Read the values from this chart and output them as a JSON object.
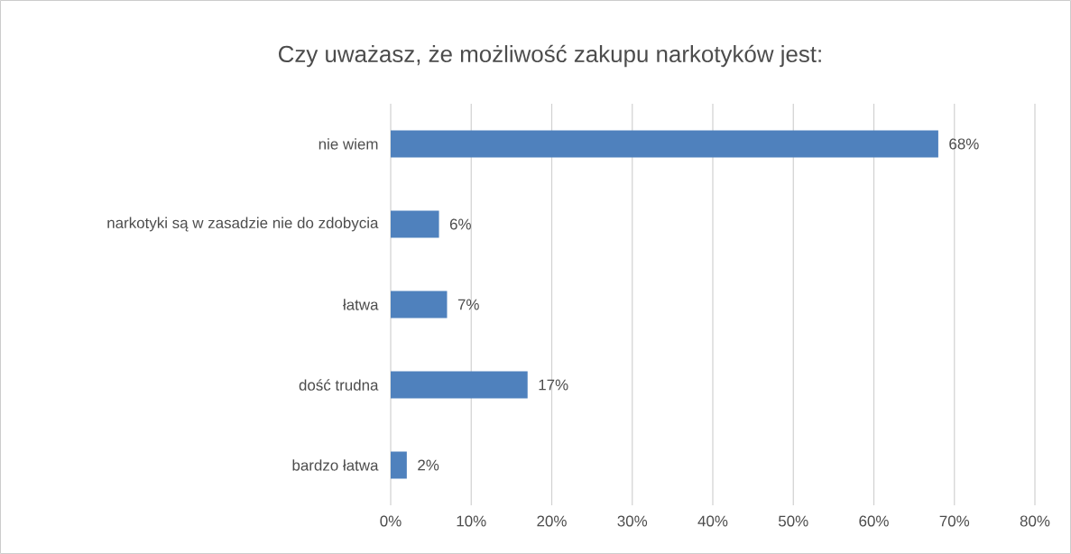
{
  "chart_data": {
    "type": "bar",
    "orientation": "horizontal",
    "title": "Czy uważasz, że możliwość zakupu narkotyków jest:",
    "categories": [
      "nie wiem",
      "narkotyki są w zasadzie nie do zdobycia",
      "łatwa",
      "dość trudna",
      "bardzo łatwa"
    ],
    "values": [
      68,
      6,
      7,
      17,
      2
    ],
    "value_labels": [
      "68%",
      "6%",
      "7%",
      "17%",
      "2%"
    ],
    "color": "#4f81bd",
    "xlim": [
      0,
      80
    ],
    "xticks": [
      {
        "value": 0,
        "label": "0%"
      },
      {
        "value": 10,
        "label": "10%"
      },
      {
        "value": 20,
        "label": "20%"
      },
      {
        "value": 30,
        "label": "30%"
      },
      {
        "value": 40,
        "label": "40%"
      },
      {
        "value": 50,
        "label": "50%"
      },
      {
        "value": 60,
        "label": "60%"
      },
      {
        "value": 70,
        "label": "70%"
      },
      {
        "value": 80,
        "label": "80%"
      }
    ],
    "grid": "x"
  }
}
